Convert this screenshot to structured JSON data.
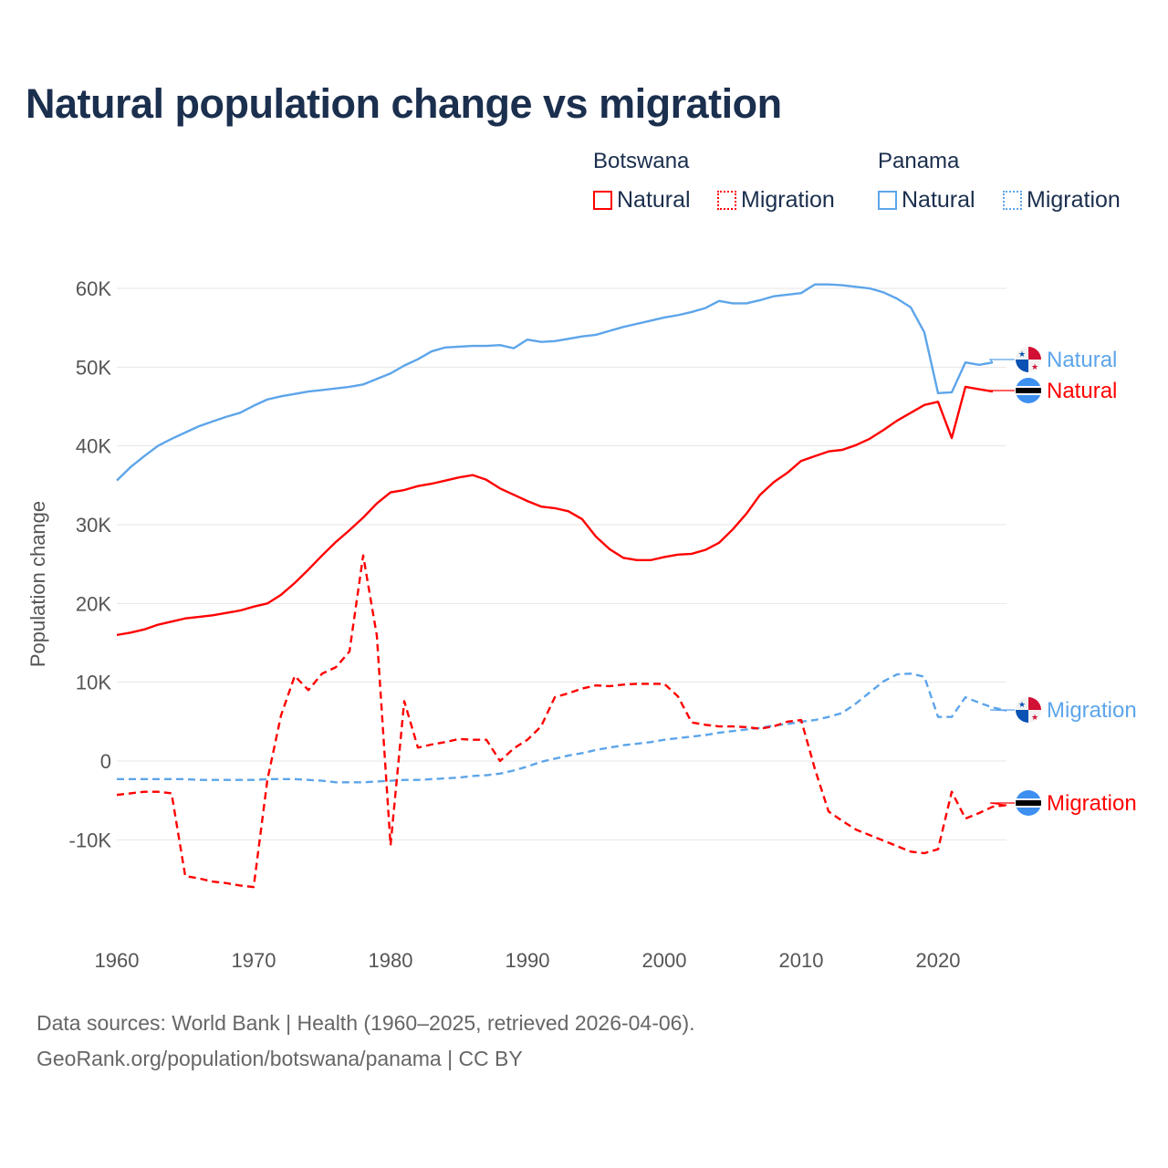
{
  "chart_data": {
    "type": "line",
    "title": "Natural population change vs migration",
    "xlabel": "",
    "ylabel": "Population change",
    "xlim": [
      1960,
      2025
    ],
    "ylim": [
      -20000,
      61000
    ],
    "x_ticks": [
      "1960",
      "1970",
      "1980",
      "1990",
      "2000",
      "2010",
      "2020"
    ],
    "y_ticks": [
      {
        "v": 60000,
        "label": "60K"
      },
      {
        "v": 50000,
        "label": "50K"
      },
      {
        "v": 40000,
        "label": "40K"
      },
      {
        "v": 30000,
        "label": "30K"
      },
      {
        "v": 20000,
        "label": "20K"
      },
      {
        "v": 10000,
        "label": "10K"
      },
      {
        "v": 0,
        "label": "0"
      },
      {
        "v": -10000,
        "label": "-10K"
      }
    ],
    "grid": true,
    "legend_placement": "top-right",
    "legend": {
      "groups": [
        {
          "name": "Botswana",
          "items": [
            "Natural",
            "Migration"
          ]
        },
        {
          "name": "Panama",
          "items": [
            "Natural",
            "Migration"
          ]
        }
      ]
    },
    "series": [
      {
        "name": "Panama Natural",
        "country": "Panama",
        "kind": "Natural",
        "label": "Natural",
        "color": "#5da5ea",
        "dashed": false,
        "start": 1960,
        "values": [
          35600,
          37300,
          38700,
          40000,
          40900,
          41700,
          42500,
          43100,
          43700,
          44200,
          45100,
          45900,
          46300,
          46600,
          46900,
          47100,
          47300,
          47500,
          47800,
          48500,
          49200,
          50200,
          51000,
          52000,
          52500,
          52600,
          52700,
          52700,
          52800,
          52400,
          53500,
          53200,
          53300,
          53600,
          53900,
          54100,
          54600,
          55100,
          55500,
          55900,
          56300,
          56600,
          57000,
          57500,
          58400,
          58100,
          58100,
          58500,
          59000,
          59200,
          59400,
          60500,
          60500,
          60400,
          60200,
          60000,
          59500,
          58700,
          57600,
          54400,
          46700,
          46800,
          50600,
          50300,
          50600
        ]
      },
      {
        "name": "Botswana Natural",
        "country": "Botswana",
        "kind": "Natural",
        "label": "Natural",
        "color": "#ff0000",
        "dashed": false,
        "start": 1960,
        "values": [
          16000,
          16300,
          16700,
          17300,
          17700,
          18100,
          18300,
          18500,
          18800,
          19100,
          19600,
          20000,
          21100,
          22600,
          24300,
          26100,
          27800,
          29300,
          30900,
          32700,
          34100,
          34400,
          34900,
          35200,
          35600,
          36000,
          36300,
          35700,
          34600,
          33800,
          33000,
          32300,
          32100,
          31700,
          30700,
          28500,
          26900,
          25800,
          25500,
          25500,
          25900,
          26200,
          26300,
          26800,
          27700,
          29400,
          31400,
          33800,
          35400,
          36600,
          38100,
          38700,
          39300,
          39500,
          40100,
          40900,
          42000,
          43200,
          44200,
          45200,
          45600,
          41000,
          47500,
          47200,
          46900
        ]
      },
      {
        "name": "Panama Migration",
        "country": "Panama",
        "kind": "Migration",
        "label": "Migration",
        "color": "#5da5ea",
        "dashed": true,
        "start": 1960,
        "values": [
          -2300,
          -2300,
          -2300,
          -2300,
          -2300,
          -2300,
          -2400,
          -2400,
          -2400,
          -2400,
          -2400,
          -2300,
          -2300,
          -2300,
          -2400,
          -2500,
          -2700,
          -2700,
          -2700,
          -2600,
          -2500,
          -2400,
          -2400,
          -2300,
          -2200,
          -2100,
          -1900,
          -1800,
          -1600,
          -1200,
          -700,
          -100,
          300,
          700,
          1000,
          1400,
          1700,
          2000,
          2200,
          2400,
          2700,
          2900,
          3100,
          3300,
          3600,
          3800,
          4000,
          4200,
          4500,
          4700,
          5000,
          5200,
          5600,
          6100,
          7300,
          8700,
          10100,
          11000,
          11100,
          10700,
          5600,
          5600,
          8100,
          7400,
          6800,
          6400
        ]
      },
      {
        "name": "Botswana Migration",
        "country": "Botswana",
        "kind": "Migration",
        "label": "Migration",
        "color": "#ff0000",
        "dashed": true,
        "start": 1960,
        "values": [
          -4300,
          -4100,
          -3900,
          -3900,
          -4100,
          -14600,
          -14900,
          -15300,
          -15500,
          -15800,
          -16000,
          -2400,
          5800,
          10800,
          9000,
          11100,
          11900,
          13900,
          26100,
          15900,
          -10700,
          7600,
          1700,
          2100,
          2400,
          2800,
          2700,
          2700,
          0,
          1600,
          2700,
          4400,
          8100,
          8600,
          9200,
          9600,
          9500,
          9700,
          9800,
          9800,
          9800,
          8200,
          4900,
          4600,
          4400,
          4400,
          4300,
          4100,
          4400,
          5000,
          5200,
          -1000,
          -6400,
          -7600,
          -8700,
          -9400,
          -10100,
          -10800,
          -11500,
          -11700,
          -11200,
          -3900,
          -7300,
          -6600,
          -5800,
          -5600
        ]
      }
    ]
  },
  "footer": {
    "line1": "Data sources: World Bank | Health (1960–2025, retrieved 2026-04-06).",
    "line2": "GeoRank.org/population/botswana/panama | CC BY"
  }
}
